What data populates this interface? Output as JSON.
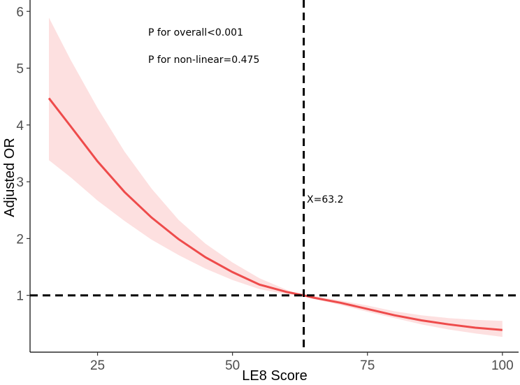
{
  "chart_data": {
    "type": "line",
    "title": "",
    "xlabel": "LE8 Score",
    "ylabel": "Adjusted OR",
    "xlim": [
      12.5,
      103
    ],
    "ylim": [
      0,
      6.2
    ],
    "xticks": [
      25,
      50,
      75,
      100
    ],
    "yticks": [
      1,
      2,
      3,
      4,
      5,
      6
    ],
    "grid": false,
    "series": [
      {
        "name": "Adjusted OR",
        "color": "#ee4b4b",
        "x": [
          16,
          20,
          25,
          30,
          35,
          40,
          45,
          50,
          55,
          60,
          63.2,
          65,
          70,
          75,
          80,
          85,
          90,
          95,
          100
        ],
        "y": [
          4.47,
          3.98,
          3.36,
          2.82,
          2.37,
          1.99,
          1.67,
          1.41,
          1.19,
          1.06,
          1.0,
          0.96,
          0.87,
          0.76,
          0.65,
          0.56,
          0.49,
          0.43,
          0.39
        ],
        "ci_lower": [
          3.38,
          3.08,
          2.67,
          2.31,
          1.98,
          1.71,
          1.47,
          1.27,
          1.11,
          1.02,
          1.0,
          0.94,
          0.83,
          0.71,
          0.6,
          0.49,
          0.4,
          0.33,
          0.27
        ],
        "ci_upper": [
          5.89,
          5.15,
          4.3,
          3.53,
          2.88,
          2.33,
          1.91,
          1.58,
          1.3,
          1.1,
          1.0,
          0.99,
          0.91,
          0.82,
          0.72,
          0.65,
          0.6,
          0.57,
          0.55
        ],
        "ci_color": "#fde0e0"
      }
    ],
    "reference_lines": {
      "vertical_x": 63.2,
      "horizontal_y": 1
    },
    "annotations": {
      "p_overall": "P for overall<0.001",
      "p_nonlinear": "P for non-linear=0.475",
      "x_marker": "X=63.2"
    }
  }
}
